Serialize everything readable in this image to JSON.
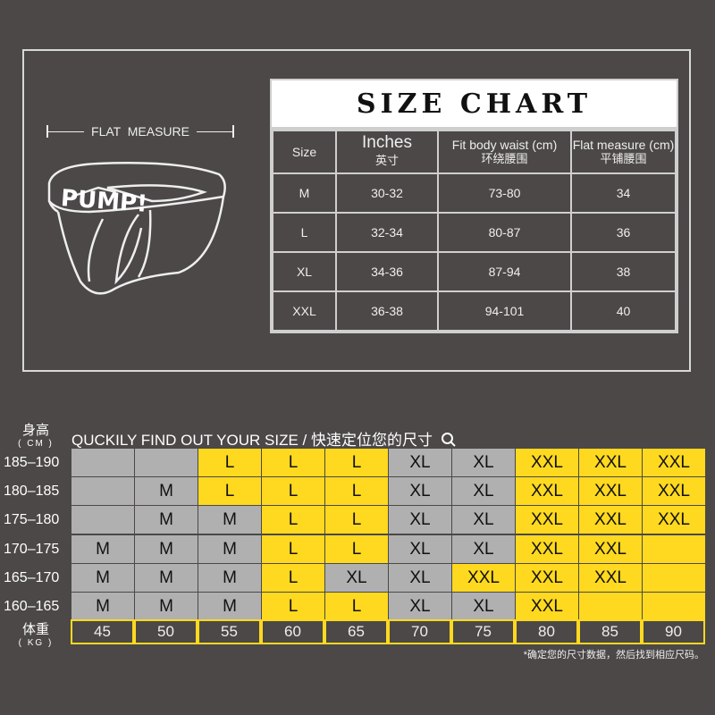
{
  "flat_measure": "FLAT  MEASURE",
  "logo_text": "PUMP!",
  "size_chart": {
    "title": "SIZE CHART",
    "headers": [
      {
        "en": "Size",
        "cn": ""
      },
      {
        "en": "Inches",
        "cn": "英寸"
      },
      {
        "en": "Fit body waist (cm)",
        "cn": "环绕腰围"
      },
      {
        "en": "Flat measure (cm)",
        "cn": "平铺腰围"
      }
    ],
    "rows": [
      [
        "M",
        "30-32",
        "73-80",
        "34"
      ],
      [
        "L",
        "32-34",
        "80-87",
        "36"
      ],
      [
        "XL",
        "34-36",
        "87-94",
        "38"
      ],
      [
        "XXL",
        "36-38",
        "94-101",
        "40"
      ]
    ]
  },
  "finder": {
    "height_label": "身高",
    "height_unit": "( CM )",
    "title": "QUCKILY FIND OUT YOUR SIZE / 快速定位您的尺寸",
    "search_icon": "search-icon",
    "weight_label": "体重",
    "weight_unit": "( KG )",
    "weights": [
      "45",
      "50",
      "55",
      "60",
      "65",
      "70",
      "75",
      "80",
      "85",
      "90"
    ],
    "colors": {
      "gray": "#b0b0b0",
      "yellow": "#ffd91f"
    },
    "rows": [
      {
        "height": "185–190",
        "sizes": [
          "",
          "",
          "L",
          "L",
          "L",
          "XL",
          "XL",
          "XXL",
          "XXL",
          "XXL"
        ],
        "highlight": "ggyyyggyyy"
      },
      {
        "height": "180–185",
        "sizes": [
          "",
          "M",
          "L",
          "L",
          "L",
          "XL",
          "XL",
          "XXL",
          "XXL",
          "XXL"
        ],
        "highlight": "ggyyyggyyy"
      },
      {
        "height": "175–180",
        "sizes": [
          "",
          "M",
          "M",
          "L",
          "L",
          "XL",
          "XL",
          "XXL",
          "XXL",
          "XXL"
        ],
        "highlight": "gggyyggyyy"
      },
      {
        "height": "170–175",
        "sizes": [
          "M",
          "M",
          "M",
          "L",
          "L",
          "XL",
          "XL",
          "XXL",
          "XXL",
          ""
        ],
        "highlight": "gggyyggyyy"
      },
      {
        "height": "165–170",
        "sizes": [
          "M",
          "M",
          "M",
          "L",
          "XL",
          "XL",
          "XXL",
          "XXL",
          "XXL",
          ""
        ],
        "highlight": "gggyggyyyy"
      },
      {
        "height": "160–165",
        "sizes": [
          "M",
          "M",
          "M",
          "L",
          "L",
          "XL",
          "XL",
          "XXL",
          "",
          ""
        ],
        "highlight": "gggyyggyyy"
      }
    ],
    "note": "*确定您的尺寸数据，然后找到相应尺码。"
  }
}
